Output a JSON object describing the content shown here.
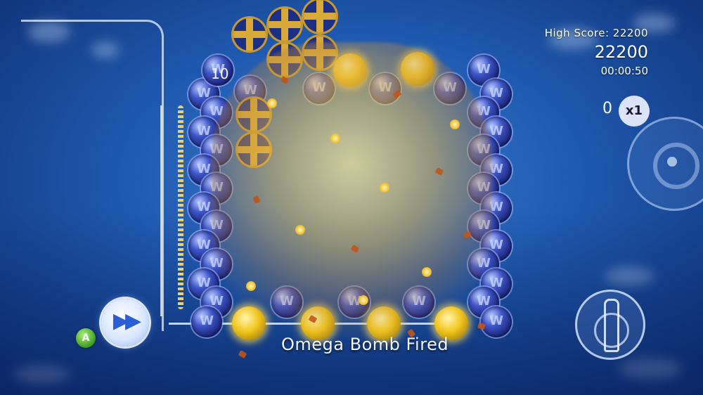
{
  "hud": {
    "high_score_label": "High Score: 22200",
    "score": "22200",
    "timer": "00:00:50",
    "chain": "0",
    "multiplier": "x1"
  },
  "board": {
    "counter": "10"
  },
  "controls": {
    "a_button_label": "A",
    "fast_forward_icon": "fast-forward-icon"
  },
  "status": {
    "message": "Omega Bomb Fired"
  },
  "colors": {
    "background": "#1f5ab0",
    "orb_blue": "#3e55c9",
    "orb_gold": "#f2c51d",
    "a_button_green": "#3e9b22"
  }
}
